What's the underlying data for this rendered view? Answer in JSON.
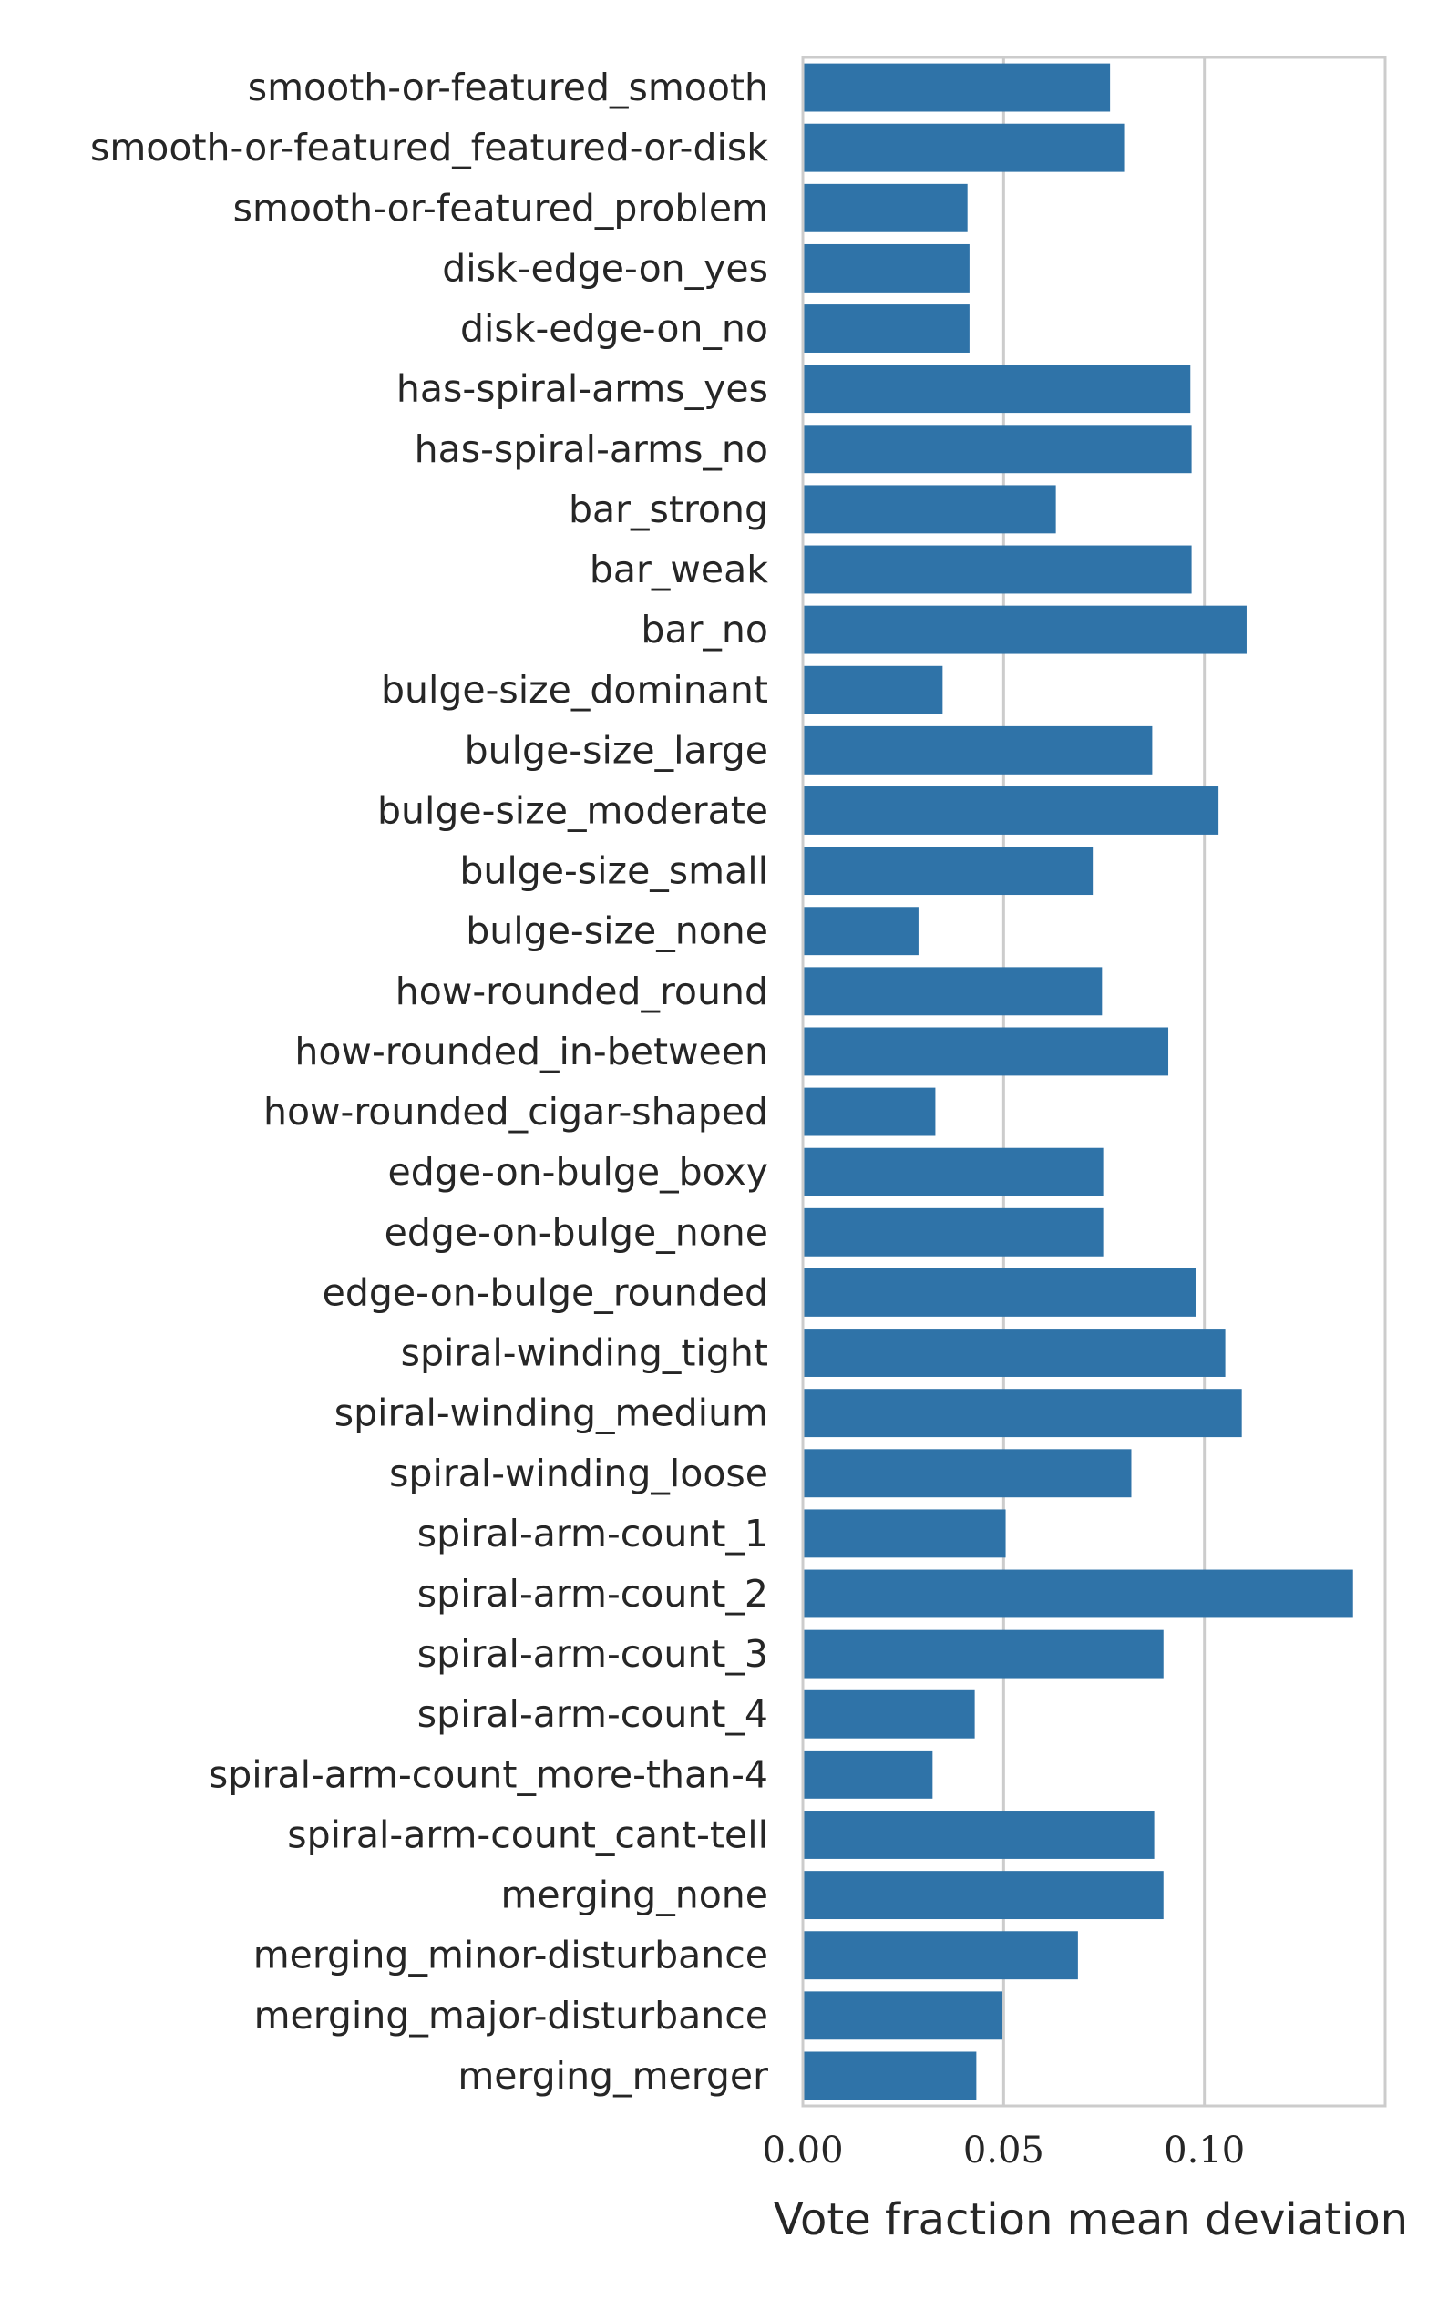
{
  "chart_data": {
    "type": "bar",
    "orientation": "horizontal",
    "categories": [
      "smooth-or-featured_smooth",
      "smooth-or-featured_featured-or-disk",
      "smooth-or-featured_problem",
      "disk-edge-on_yes",
      "disk-edge-on_no",
      "has-spiral-arms_yes",
      "has-spiral-arms_no",
      "bar_strong",
      "bar_weak",
      "bar_no",
      "bulge-size_dominant",
      "bulge-size_large",
      "bulge-size_moderate",
      "bulge-size_small",
      "bulge-size_none",
      "how-rounded_round",
      "how-rounded_in-between",
      "how-rounded_cigar-shaped",
      "edge-on-bulge_boxy",
      "edge-on-bulge_none",
      "edge-on-bulge_rounded",
      "spiral-winding_tight",
      "spiral-winding_medium",
      "spiral-winding_loose",
      "spiral-arm-count_1",
      "spiral-arm-count_2",
      "spiral-arm-count_3",
      "spiral-arm-count_4",
      "spiral-arm-count_more-than-4",
      "spiral-arm-count_cant-tell",
      "merging_none",
      "merging_minor-disturbance",
      "merging_major-disturbance",
      "merging_merger"
    ],
    "values": [
      0.0765,
      0.08,
      0.041,
      0.0415,
      0.0415,
      0.0965,
      0.0968,
      0.063,
      0.0968,
      0.1105,
      0.0348,
      0.087,
      0.1035,
      0.0722,
      0.0288,
      0.0745,
      0.091,
      0.033,
      0.0748,
      0.0748,
      0.0978,
      0.1052,
      0.1093,
      0.0818,
      0.0505,
      0.137,
      0.0898,
      0.0428,
      0.0323,
      0.0875,
      0.0898,
      0.0685,
      0.0497,
      0.0432
    ],
    "xlabel": "Vote fraction mean deviation",
    "ylabel": "",
    "xlim": [
      0,
      0.145
    ],
    "xticks": [
      0.0,
      0.05,
      0.1
    ],
    "xtick_labels": [
      "0.00",
      "0.05",
      "0.10"
    ],
    "grid": "vertical",
    "bar_color": "#2f73a8",
    "legend": "none"
  }
}
